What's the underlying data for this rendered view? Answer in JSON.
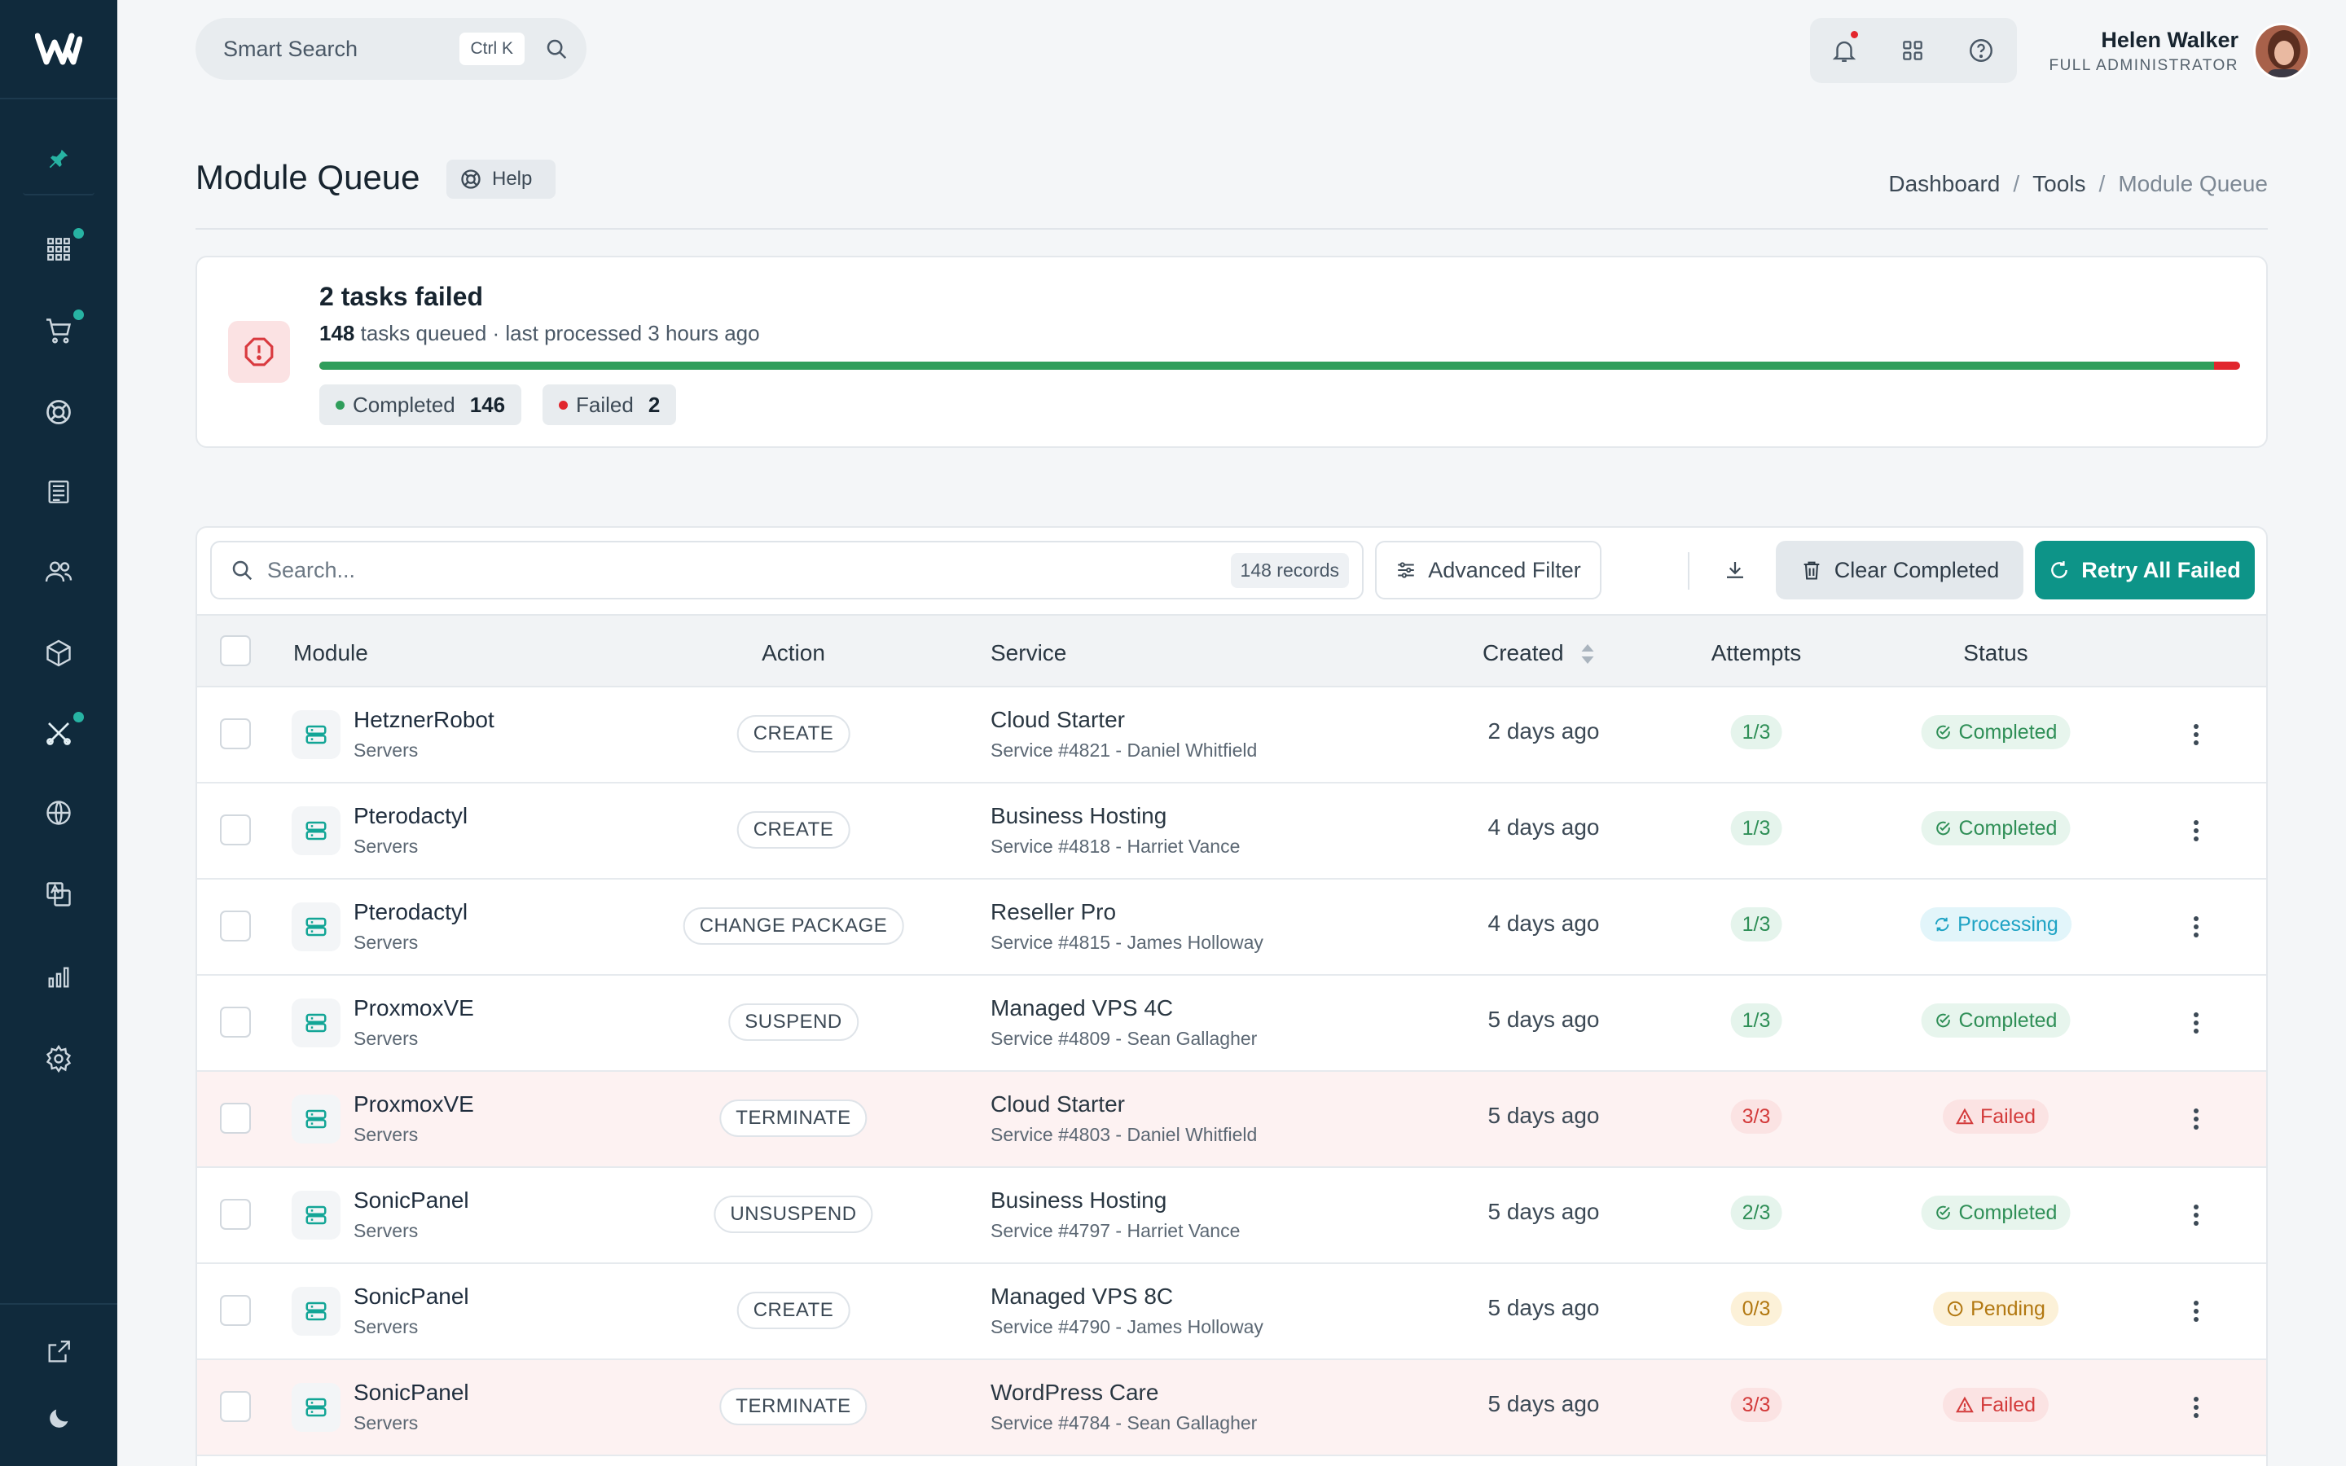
{
  "topbar": {
    "search_placeholder": "Smart Search",
    "shortcut": "Ctrl K",
    "user_name": "Helen Walker",
    "user_role": "FULL ADMINISTRATOR"
  },
  "page": {
    "title": "Module Queue",
    "help_label": "Help",
    "breadcrumb": [
      "Dashboard",
      "Tools",
      "Module Queue"
    ]
  },
  "summary": {
    "title": "2 tasks failed",
    "queued_count": "148",
    "queued_text": "tasks queued · last processed 3 hours ago",
    "completed_label": "Completed",
    "completed_count": "146",
    "failed_label": "Failed",
    "failed_count": "2",
    "completed_fraction": 0.9865
  },
  "toolbar": {
    "search_placeholder": "Search...",
    "records": "148 records",
    "filter_label": "Advanced Filter",
    "clear_label": "Clear Completed",
    "retry_label": "Retry All Failed"
  },
  "table": {
    "columns": [
      "Module",
      "Action",
      "Service",
      "Created",
      "Attempts",
      "Status"
    ],
    "rows": [
      {
        "module": "HetznerRobot",
        "type": "Servers",
        "action": "CREATE",
        "service": "Cloud Starter",
        "service_sub": "Service #4821 - Daniel Whitfield",
        "created": "2 days ago",
        "attempts": "1/3",
        "status": "Completed"
      },
      {
        "module": "Pterodactyl",
        "type": "Servers",
        "action": "CREATE",
        "service": "Business Hosting",
        "service_sub": "Service #4818 - Harriet Vance",
        "created": "4 days ago",
        "attempts": "1/3",
        "status": "Completed"
      },
      {
        "module": "Pterodactyl",
        "type": "Servers",
        "action": "CHANGE PACKAGE",
        "service": "Reseller Pro",
        "service_sub": "Service #4815 - James Holloway",
        "created": "4 days ago",
        "attempts": "1/3",
        "status": "Processing"
      },
      {
        "module": "ProxmoxVE",
        "type": "Servers",
        "action": "SUSPEND",
        "service": "Managed VPS 4C",
        "service_sub": "Service #4809 - Sean Gallagher",
        "created": "5 days ago",
        "attempts": "1/3",
        "status": "Completed"
      },
      {
        "module": "ProxmoxVE",
        "type": "Servers",
        "action": "TERMINATE",
        "service": "Cloud Starter",
        "service_sub": "Service #4803 - Daniel Whitfield",
        "created": "5 days ago",
        "attempts": "3/3",
        "status": "Failed"
      },
      {
        "module": "SonicPanel",
        "type": "Servers",
        "action": "UNSUSPEND",
        "service": "Business Hosting",
        "service_sub": "Service #4797 - Harriet Vance",
        "created": "5 days ago",
        "attempts": "2/3",
        "status": "Completed"
      },
      {
        "module": "SonicPanel",
        "type": "Servers",
        "action": "CREATE",
        "service": "Managed VPS 8C",
        "service_sub": "Service #4790 - James Holloway",
        "created": "5 days ago",
        "attempts": "0/3",
        "status": "Pending"
      },
      {
        "module": "SonicPanel",
        "type": "Servers",
        "action": "TERMINATE",
        "service": "WordPress Care",
        "service_sub": "Service #4784 - Sean Gallagher",
        "created": "5 days ago",
        "attempts": "3/3",
        "status": "Failed"
      }
    ]
  },
  "sidebar": {
    "items": [
      "pin-icon",
      "apps-icon",
      "cart-icon",
      "support-icon",
      "billing-icon",
      "users-icon",
      "package-icon",
      "tools-icon",
      "globe-icon",
      "translate-icon",
      "reports-icon",
      "settings-icon",
      "external-link-icon",
      "moon-icon"
    ]
  },
  "colors": {
    "sidebar": "#102a3c",
    "accent": "#0d9488",
    "success": "#2f9e5b",
    "danger": "#e1262d"
  }
}
